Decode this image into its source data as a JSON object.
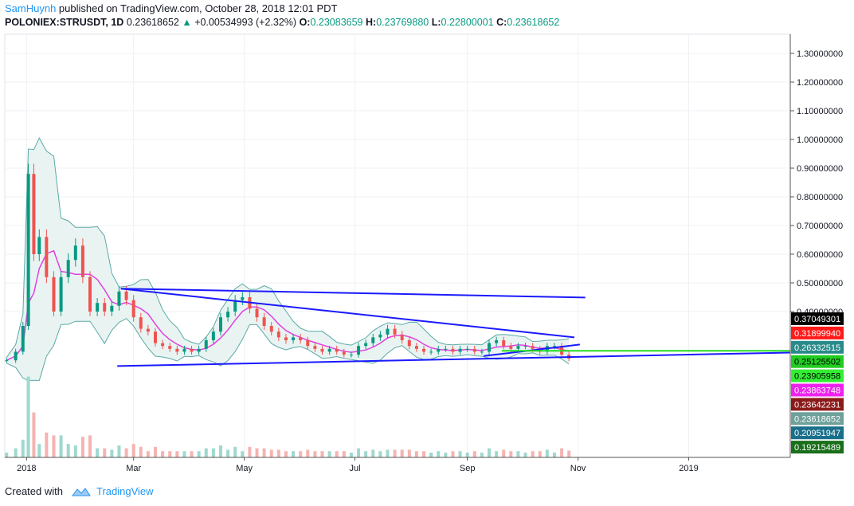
{
  "header": {
    "author": "SamHuynh",
    "published_text": " published on TradingView.com, October 28, 2018 12:01 PDT",
    "symbol": "POLONIEX:STRUSDT, 1D",
    "last": "0.23618652",
    "change": "+0.00534993 (+2.32%)",
    "o_label": "O:",
    "o_value": "0.23083659",
    "h_label": "H:",
    "h_value": "0.23769880",
    "l_label": "L:",
    "l_value": "0.22800001",
    "c_label": "C:",
    "c_value": "0.23618652"
  },
  "footer": {
    "created_with": "Created with",
    "brand": "TradingView"
  },
  "colors": {
    "up": "#089981",
    "down": "#ef5350",
    "trend": "#1a1aff",
    "bb": "#5aa9a6",
    "green_line": "#22dd22",
    "magenta": "#e040e0"
  },
  "chart_data": {
    "type": "candlestick",
    "ylim": [
      0.0,
      1.35
    ],
    "x_ticks": [
      {
        "label": "2018",
        "date": "2018-01-01"
      },
      {
        "label": "Mar",
        "date": "2018-03-01"
      },
      {
        "label": "May",
        "date": "2018-05-01"
      },
      {
        "label": "Jul",
        "date": "2018-07-01"
      },
      {
        "label": "Sep",
        "date": "2018-09-01"
      },
      {
        "label": "Nov",
        "date": "2018-11-01"
      },
      {
        "label": "2019",
        "date": "2019-01-01"
      }
    ],
    "x_range": [
      "2017-12-20",
      "2019-02-26"
    ],
    "y_ticks": [
      "0.40000000",
      "0.50000000",
      "0.60000000",
      "0.70000000",
      "0.80000000",
      "0.90000000",
      "1.00000000",
      "1.10000000",
      "1.20000000",
      "1.30000000"
    ],
    "y_tick_values": [
      0.4,
      0.5,
      0.6,
      0.7,
      0.8,
      0.9,
      1.0,
      1.1,
      1.2,
      1.3
    ],
    "close_series": [
      [
        "2017-12-21",
        0.23
      ],
      [
        "2017-12-26",
        0.26
      ],
      [
        "2017-12-30",
        0.35
      ],
      [
        "2018-01-02",
        0.88
      ],
      [
        "2018-01-05",
        0.6
      ],
      [
        "2018-01-08",
        0.66
      ],
      [
        "2018-01-12",
        0.52
      ],
      [
        "2018-01-16",
        0.4
      ],
      [
        "2018-01-20",
        0.52
      ],
      [
        "2018-01-24",
        0.58
      ],
      [
        "2018-01-28",
        0.63
      ],
      [
        "2018-02-01",
        0.52
      ],
      [
        "2018-02-05",
        0.4
      ],
      [
        "2018-02-09",
        0.43
      ],
      [
        "2018-02-13",
        0.4
      ],
      [
        "2018-02-17",
        0.42
      ],
      [
        "2018-02-21",
        0.47
      ],
      [
        "2018-02-25",
        0.44
      ],
      [
        "2018-03-01",
        0.38
      ],
      [
        "2018-03-05",
        0.34
      ],
      [
        "2018-03-09",
        0.33
      ],
      [
        "2018-03-13",
        0.29
      ],
      [
        "2018-03-17",
        0.28
      ],
      [
        "2018-03-21",
        0.27
      ],
      [
        "2018-03-25",
        0.26
      ],
      [
        "2018-03-29",
        0.27
      ],
      [
        "2018-04-02",
        0.26
      ],
      [
        "2018-04-06",
        0.27
      ],
      [
        "2018-04-10",
        0.3
      ],
      [
        "2018-04-14",
        0.33
      ],
      [
        "2018-04-18",
        0.38
      ],
      [
        "2018-04-22",
        0.4
      ],
      [
        "2018-04-26",
        0.44
      ],
      [
        "2018-04-30",
        0.45
      ],
      [
        "2018-05-04",
        0.41
      ],
      [
        "2018-05-08",
        0.38
      ],
      [
        "2018-05-12",
        0.35
      ],
      [
        "2018-05-16",
        0.33
      ],
      [
        "2018-05-20",
        0.31
      ],
      [
        "2018-05-24",
        0.3
      ],
      [
        "2018-05-28",
        0.31
      ],
      [
        "2018-06-01",
        0.3
      ],
      [
        "2018-06-05",
        0.28
      ],
      [
        "2018-06-09",
        0.27
      ],
      [
        "2018-06-13",
        0.26
      ],
      [
        "2018-06-17",
        0.27
      ],
      [
        "2018-06-21",
        0.26
      ],
      [
        "2018-06-25",
        0.25
      ],
      [
        "2018-06-29",
        0.25
      ],
      [
        "2018-07-03",
        0.28
      ],
      [
        "2018-07-07",
        0.29
      ],
      [
        "2018-07-11",
        0.31
      ],
      [
        "2018-07-15",
        0.32
      ],
      [
        "2018-07-19",
        0.34
      ],
      [
        "2018-07-23",
        0.32
      ],
      [
        "2018-07-27",
        0.3
      ],
      [
        "2018-07-31",
        0.28
      ],
      [
        "2018-08-04",
        0.27
      ],
      [
        "2018-08-08",
        0.26
      ],
      [
        "2018-08-12",
        0.26
      ],
      [
        "2018-08-16",
        0.27
      ],
      [
        "2018-08-20",
        0.27
      ],
      [
        "2018-08-24",
        0.26
      ],
      [
        "2018-08-28",
        0.27
      ],
      [
        "2018-09-01",
        0.27
      ],
      [
        "2018-09-05",
        0.26
      ],
      [
        "2018-09-09",
        0.26
      ],
      [
        "2018-09-13",
        0.29
      ],
      [
        "2018-09-17",
        0.3
      ],
      [
        "2018-09-21",
        0.28
      ],
      [
        "2018-09-25",
        0.27
      ],
      [
        "2018-09-29",
        0.28
      ],
      [
        "2018-10-03",
        0.28
      ],
      [
        "2018-10-07",
        0.27
      ],
      [
        "2018-10-11",
        0.26
      ],
      [
        "2018-10-15",
        0.28
      ],
      [
        "2018-10-19",
        0.28
      ],
      [
        "2018-10-23",
        0.25
      ],
      [
        "2018-10-27",
        0.23618652
      ]
    ],
    "trendlines": [
      {
        "name": "upper-flat",
        "from": [
          "2018-02-22",
          0.48
        ],
        "to": [
          "2018-11-05",
          0.449
        ]
      },
      {
        "name": "descending",
        "from": [
          "2018-02-22",
          0.48
        ],
        "to": [
          "2018-10-30",
          0.31
        ]
      },
      {
        "name": "rising-short",
        "from": [
          "2018-09-10",
          0.245
        ],
        "to": [
          "2018-11-02",
          0.285
        ]
      },
      {
        "name": "rising-long",
        "from": [
          "2018-02-20",
          0.21
        ],
        "to": [
          "2019-02-26",
          0.257
        ]
      }
    ],
    "green_hline": 0.2633,
    "price_labels": [
      {
        "text": "0.37049301",
        "bg": "#000000",
        "fg": "#ffffff"
      },
      {
        "text": "0.31899940",
        "bg": "#ff1a1a",
        "fg": "#ffffff"
      },
      {
        "text": "0.26332515",
        "bg": "#2a8a8a",
        "fg": "#ffffff"
      },
      {
        "text": "0.25125502",
        "bg": "#22cc22",
        "fg": "#000000"
      },
      {
        "text": "0.23905958",
        "bg": "#33ee33",
        "fg": "#000000"
      },
      {
        "text": "0.23863748",
        "bg": "#ee22ee",
        "fg": "#ffffff"
      },
      {
        "text": "0.23642231",
        "bg": "#8b1a1a",
        "fg": "#ffffff"
      },
      {
        "text": "0.23618652",
        "bg": "#6fa09a",
        "fg": "#ffffff"
      },
      {
        "text": "0.20951947",
        "bg": "#1a6f8a",
        "fg": "#ffffff"
      },
      {
        "text": "0.19215489",
        "bg": "#1a6f1a",
        "fg": "#ffffff"
      }
    ]
  }
}
